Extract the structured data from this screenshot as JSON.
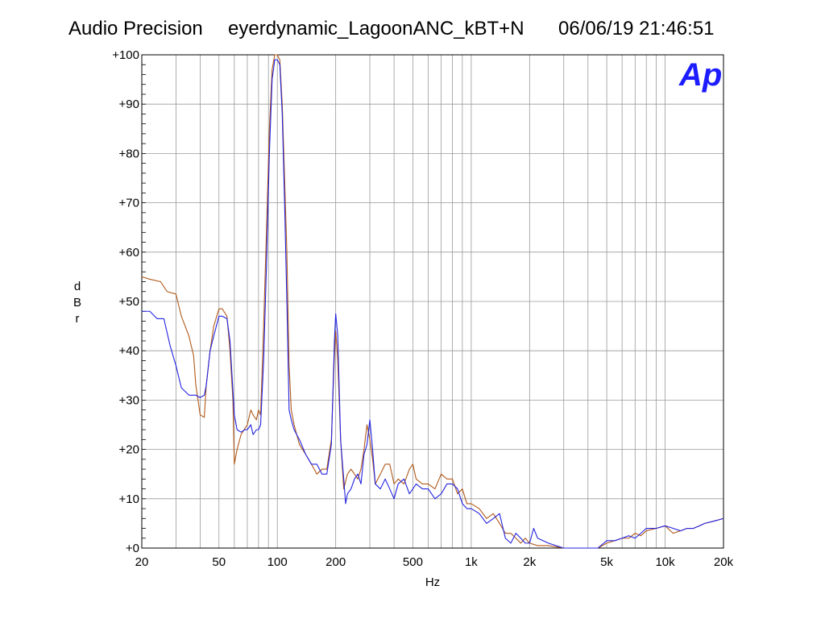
{
  "header": {
    "left": "Audio Precision",
    "center": "eyerdynamic_LagoonANC_kBT+N",
    "right": "06/06/19 21:46:51"
  },
  "logo": {
    "text": "Ap",
    "color": "#1c1cff"
  },
  "chart_data": {
    "type": "line",
    "xlabel": "Hz",
    "ylabel": "dBr",
    "xscale": "log",
    "xlim": [
      20,
      20000
    ],
    "ylim": [
      0,
      100
    ],
    "grid": true,
    "x_ticks": [
      {
        "value": 20,
        "label": "20"
      },
      {
        "value": 50,
        "label": "50"
      },
      {
        "value": 100,
        "label": "100"
      },
      {
        "value": 200,
        "label": "200"
      },
      {
        "value": 500,
        "label": "500"
      },
      {
        "value": 1000,
        "label": "1k"
      },
      {
        "value": 2000,
        "label": "2k"
      },
      {
        "value": 5000,
        "label": "5k"
      },
      {
        "value": 10000,
        "label": "10k"
      },
      {
        "value": 20000,
        "label": "20k"
      }
    ],
    "y_ticks": [
      {
        "value": 0,
        "label": "+0"
      },
      {
        "value": 10,
        "label": "+10"
      },
      {
        "value": 20,
        "label": "+20"
      },
      {
        "value": 30,
        "label": "+30"
      },
      {
        "value": 40,
        "label": "+40"
      },
      {
        "value": 50,
        "label": "+50"
      },
      {
        "value": 60,
        "label": "+60"
      },
      {
        "value": 70,
        "label": "+70"
      },
      {
        "value": 80,
        "label": "+80"
      },
      {
        "value": 90,
        "label": "+90"
      },
      {
        "value": 100,
        "label": "+100"
      }
    ],
    "series": [
      {
        "color": "#b05a1a",
        "points": [
          [
            20,
            55
          ],
          [
            22,
            54.5
          ],
          [
            25,
            54
          ],
          [
            27,
            52
          ],
          [
            30,
            51.5
          ],
          [
            32,
            47
          ],
          [
            35,
            43
          ],
          [
            37,
            39
          ],
          [
            38,
            33
          ],
          [
            39,
            30
          ],
          [
            40,
            27
          ],
          [
            42,
            26.5
          ],
          [
            43,
            33
          ],
          [
            45,
            40
          ],
          [
            47,
            45
          ],
          [
            50,
            48.5
          ],
          [
            52,
            48.5
          ],
          [
            55,
            47
          ],
          [
            57,
            40
          ],
          [
            59,
            30
          ],
          [
            60,
            17
          ],
          [
            62,
            20
          ],
          [
            65,
            23
          ],
          [
            70,
            25
          ],
          [
            73,
            28
          ],
          [
            75,
            27
          ],
          [
            78,
            26
          ],
          [
            80,
            28
          ],
          [
            82,
            27
          ],
          [
            85,
            45
          ],
          [
            88,
            65
          ],
          [
            91,
            85
          ],
          [
            94,
            97
          ],
          [
            97,
            100
          ],
          [
            100,
            100
          ],
          [
            103,
            99
          ],
          [
            106,
            90
          ],
          [
            109,
            75
          ],
          [
            112,
            60
          ],
          [
            115,
            37
          ],
          [
            118,
            28
          ],
          [
            122,
            25
          ],
          [
            130,
            21
          ],
          [
            140,
            19
          ],
          [
            150,
            17
          ],
          [
            160,
            15
          ],
          [
            170,
            16
          ],
          [
            180,
            16
          ],
          [
            190,
            22
          ],
          [
            197,
            39
          ],
          [
            200,
            44
          ],
          [
            205,
            38
          ],
          [
            212,
            22
          ],
          [
            220,
            12
          ],
          [
            230,
            15
          ],
          [
            240,
            16
          ],
          [
            250,
            15
          ],
          [
            260,
            14
          ],
          [
            270,
            16
          ],
          [
            280,
            20
          ],
          [
            290,
            25
          ],
          [
            300,
            22
          ],
          [
            310,
            18
          ],
          [
            320,
            13
          ],
          [
            340,
            15
          ],
          [
            360,
            17
          ],
          [
            380,
            17
          ],
          [
            400,
            13
          ],
          [
            420,
            14
          ],
          [
            450,
            13
          ],
          [
            480,
            16
          ],
          [
            500,
            17
          ],
          [
            520,
            14
          ],
          [
            560,
            13
          ],
          [
            600,
            13
          ],
          [
            650,
            12
          ],
          [
            700,
            15
          ],
          [
            750,
            14
          ],
          [
            800,
            14
          ],
          [
            850,
            11
          ],
          [
            900,
            12
          ],
          [
            950,
            9
          ],
          [
            1000,
            9
          ],
          [
            1100,
            8
          ],
          [
            1200,
            6
          ],
          [
            1300,
            7
          ],
          [
            1400,
            5
          ],
          [
            1500,
            3
          ],
          [
            1600,
            3
          ],
          [
            1700,
            2
          ],
          [
            1800,
            1
          ],
          [
            1900,
            2
          ],
          [
            2000,
            1
          ],
          [
            2200,
            0.5
          ],
          [
            2500,
            0.5
          ],
          [
            3000,
            0
          ],
          [
            4000,
            0
          ],
          [
            4500,
            0
          ],
          [
            5000,
            1
          ],
          [
            5500,
            1.5
          ],
          [
            6000,
            2
          ],
          [
            6500,
            2
          ],
          [
            7000,
            3
          ],
          [
            7500,
            2.5
          ],
          [
            8000,
            3.5
          ],
          [
            9000,
            4
          ],
          [
            10000,
            4.5
          ],
          [
            11000,
            3
          ],
          [
            12000,
            3.5
          ],
          [
            13000,
            4
          ],
          [
            14000,
            4
          ],
          [
            15000,
            4.5
          ],
          [
            16000,
            5
          ],
          [
            18000,
            5.5
          ],
          [
            20000,
            6
          ]
        ]
      },
      {
        "color": "#2323e0",
        "points": [
          [
            20,
            48
          ],
          [
            22,
            48
          ],
          [
            24,
            46.5
          ],
          [
            26,
            46.5
          ],
          [
            28,
            41
          ],
          [
            30,
            37
          ],
          [
            32,
            32.5
          ],
          [
            35,
            31
          ],
          [
            38,
            31
          ],
          [
            40,
            30.5
          ],
          [
            42,
            31
          ],
          [
            43,
            33
          ],
          [
            45,
            40
          ],
          [
            47,
            43
          ],
          [
            50,
            47
          ],
          [
            52,
            47
          ],
          [
            55,
            46.5
          ],
          [
            57,
            42
          ],
          [
            60,
            27
          ],
          [
            62,
            24
          ],
          [
            65,
            23.5
          ],
          [
            68,
            24
          ],
          [
            70,
            24
          ],
          [
            73,
            25
          ],
          [
            75,
            23
          ],
          [
            78,
            24
          ],
          [
            80,
            24
          ],
          [
            82,
            25
          ],
          [
            85,
            38
          ],
          [
            88,
            58
          ],
          [
            91,
            80
          ],
          [
            94,
            95
          ],
          [
            97,
            99
          ],
          [
            100,
            99
          ],
          [
            103,
            98
          ],
          [
            106,
            88
          ],
          [
            109,
            70
          ],
          [
            112,
            50
          ],
          [
            115,
            28
          ],
          [
            118,
            26
          ],
          [
            122,
            24
          ],
          [
            130,
            22
          ],
          [
            140,
            19
          ],
          [
            150,
            17
          ],
          [
            160,
            17
          ],
          [
            170,
            15
          ],
          [
            180,
            15
          ],
          [
            190,
            21
          ],
          [
            197,
            42
          ],
          [
            200,
            47.5
          ],
          [
            205,
            43
          ],
          [
            212,
            22
          ],
          [
            220,
            14
          ],
          [
            225,
            9
          ],
          [
            230,
            11
          ],
          [
            240,
            12
          ],
          [
            250,
            14
          ],
          [
            260,
            15
          ],
          [
            270,
            13
          ],
          [
            280,
            19
          ],
          [
            290,
            21
          ],
          [
            300,
            26
          ],
          [
            310,
            20
          ],
          [
            320,
            13
          ],
          [
            340,
            12
          ],
          [
            360,
            14
          ],
          [
            380,
            12
          ],
          [
            400,
            10
          ],
          [
            420,
            13
          ],
          [
            450,
            14
          ],
          [
            480,
            11
          ],
          [
            500,
            12
          ],
          [
            520,
            13
          ],
          [
            560,
            12
          ],
          [
            600,
            12
          ],
          [
            650,
            10
          ],
          [
            700,
            11
          ],
          [
            750,
            13
          ],
          [
            800,
            13
          ],
          [
            850,
            12
          ],
          [
            900,
            9
          ],
          [
            950,
            8
          ],
          [
            1000,
            8
          ],
          [
            1100,
            7
          ],
          [
            1200,
            5
          ],
          [
            1300,
            6
          ],
          [
            1400,
            7
          ],
          [
            1500,
            2
          ],
          [
            1600,
            1
          ],
          [
            1700,
            3
          ],
          [
            1800,
            2
          ],
          [
            1900,
            1
          ],
          [
            2000,
            1
          ],
          [
            2100,
            4
          ],
          [
            2200,
            2
          ],
          [
            2500,
            1
          ],
          [
            3000,
            0
          ],
          [
            4000,
            0
          ],
          [
            4500,
            0
          ],
          [
            5000,
            1.5
          ],
          [
            5500,
            1.5
          ],
          [
            6000,
            2
          ],
          [
            6500,
            2.5
          ],
          [
            7000,
            2
          ],
          [
            7500,
            3
          ],
          [
            8000,
            4
          ],
          [
            9000,
            4
          ],
          [
            10000,
            4.5
          ],
          [
            11000,
            4
          ],
          [
            12000,
            3.5
          ],
          [
            13000,
            4
          ],
          [
            14000,
            4
          ],
          [
            15000,
            4.5
          ],
          [
            16000,
            5
          ],
          [
            18000,
            5.5
          ],
          [
            20000,
            6
          ]
        ]
      }
    ]
  }
}
